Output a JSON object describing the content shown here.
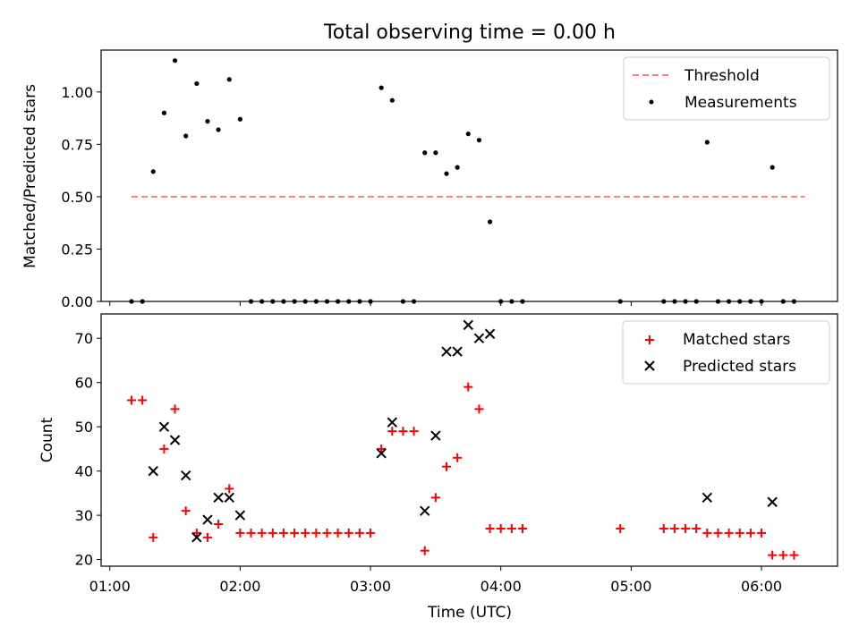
{
  "chart_data": [
    {
      "type": "scatter",
      "title": "Total observing time = 0.00 h",
      "xlabel": "",
      "ylabel": "Matched/Predicted stars",
      "xlim": [
        "00:56",
        "06:35"
      ],
      "ylim": [
        0,
        1.2
      ],
      "yticks": [
        "0.00",
        "0.25",
        "0.50",
        "0.75",
        "1.00"
      ],
      "legend": {
        "position": "upper right",
        "entries": [
          "Threshold",
          "Measurements"
        ]
      },
      "threshold": {
        "name": "Threshold",
        "value": 0.5,
        "x": [
          "01:10",
          "06:20"
        ],
        "color": "#ff7f7f"
      },
      "series": [
        {
          "name": "Measurements",
          "color": "#000000",
          "marker": "dot",
          "points": [
            [
              "01:10",
              0
            ],
            [
              "01:15",
              0
            ],
            [
              "01:20",
              0.62
            ],
            [
              "01:25",
              0.9
            ],
            [
              "01:30",
              1.15
            ],
            [
              "01:35",
              0.79
            ],
            [
              "01:40",
              1.04
            ],
            [
              "01:45",
              0.86
            ],
            [
              "01:50",
              0.82
            ],
            [
              "01:55",
              1.06
            ],
            [
              "02:00",
              0.87
            ],
            [
              "02:05",
              0
            ],
            [
              "02:10",
              0
            ],
            [
              "02:15",
              0
            ],
            [
              "02:20",
              0
            ],
            [
              "02:25",
              0
            ],
            [
              "02:30",
              0
            ],
            [
              "02:35",
              0
            ],
            [
              "02:40",
              0
            ],
            [
              "02:45",
              0
            ],
            [
              "02:50",
              0
            ],
            [
              "02:55",
              0
            ],
            [
              "03:00",
              0
            ],
            [
              "03:05",
              1.02
            ],
            [
              "03:10",
              0.96
            ],
            [
              "03:15",
              0
            ],
            [
              "03:20",
              0
            ],
            [
              "03:25",
              0.71
            ],
            [
              "03:30",
              0.71
            ],
            [
              "03:35",
              0.61
            ],
            [
              "03:40",
              0.64
            ],
            [
              "03:45",
              0.8
            ],
            [
              "03:50",
              0.77
            ],
            [
              "03:55",
              0.38
            ],
            [
              "04:00",
              0
            ],
            [
              "04:05",
              0
            ],
            [
              "04:10",
              0
            ],
            [
              "04:55",
              0
            ],
            [
              "05:15",
              0
            ],
            [
              "05:20",
              0
            ],
            [
              "05:25",
              0
            ],
            [
              "05:30",
              0
            ],
            [
              "05:35",
              0.76
            ],
            [
              "05:40",
              0
            ],
            [
              "05:45",
              0
            ],
            [
              "05:50",
              0
            ],
            [
              "05:55",
              0
            ],
            [
              "06:00",
              0
            ],
            [
              "06:05",
              0.64
            ],
            [
              "06:10",
              0
            ],
            [
              "06:15",
              0
            ]
          ]
        }
      ]
    },
    {
      "type": "scatter",
      "title": "",
      "xlabel": "Time (UTC)",
      "ylabel": "Count",
      "xlim": [
        "00:56",
        "06:35"
      ],
      "ylim": [
        18.5,
        75.5
      ],
      "xticks": [
        "01:00",
        "02:00",
        "03:00",
        "04:00",
        "05:00",
        "06:00"
      ],
      "yticks": [
        "20",
        "30",
        "40",
        "50",
        "60",
        "70"
      ],
      "legend": {
        "position": "upper right",
        "entries": [
          "Matched stars",
          "Predicted stars"
        ]
      },
      "series": [
        {
          "name": "Matched stars",
          "color": "#ff0000",
          "marker": "plus",
          "points": [
            [
              "01:10",
              56
            ],
            [
              "01:15",
              56
            ],
            [
              "01:20",
              25
            ],
            [
              "01:25",
              45
            ],
            [
              "01:30",
              54
            ],
            [
              "01:35",
              31
            ],
            [
              "01:40",
              26
            ],
            [
              "01:45",
              25
            ],
            [
              "01:50",
              28
            ],
            [
              "01:55",
              36
            ],
            [
              "02:00",
              26
            ],
            [
              "02:05",
              26
            ],
            [
              "02:10",
              26
            ],
            [
              "02:15",
              26
            ],
            [
              "02:20",
              26
            ],
            [
              "02:25",
              26
            ],
            [
              "02:30",
              26
            ],
            [
              "02:35",
              26
            ],
            [
              "02:40",
              26
            ],
            [
              "02:45",
              26
            ],
            [
              "02:50",
              26
            ],
            [
              "02:55",
              26
            ],
            [
              "03:00",
              26
            ],
            [
              "03:05",
              45
            ],
            [
              "03:10",
              49
            ],
            [
              "03:15",
              49
            ],
            [
              "03:20",
              49
            ],
            [
              "03:25",
              22
            ],
            [
              "03:30",
              34
            ],
            [
              "03:35",
              41
            ],
            [
              "03:40",
              43
            ],
            [
              "03:45",
              59
            ],
            [
              "03:50",
              54
            ],
            [
              "03:55",
              27
            ],
            [
              "04:00",
              27
            ],
            [
              "04:05",
              27
            ],
            [
              "04:10",
              27
            ],
            [
              "04:55",
              27
            ],
            [
              "05:15",
              27
            ],
            [
              "05:20",
              27
            ],
            [
              "05:25",
              27
            ],
            [
              "05:30",
              27
            ],
            [
              "05:35",
              26
            ],
            [
              "05:40",
              26
            ],
            [
              "05:45",
              26
            ],
            [
              "05:50",
              26
            ],
            [
              "05:55",
              26
            ],
            [
              "06:00",
              26
            ],
            [
              "06:05",
              21
            ],
            [
              "06:10",
              21
            ],
            [
              "06:15",
              21
            ]
          ]
        },
        {
          "name": "Predicted stars",
          "color": "#000000",
          "marker": "x",
          "points": [
            [
              "01:20",
              40
            ],
            [
              "01:25",
              50
            ],
            [
              "01:30",
              47
            ],
            [
              "01:35",
              39
            ],
            [
              "01:40",
              25
            ],
            [
              "01:45",
              29
            ],
            [
              "01:50",
              34
            ],
            [
              "01:55",
              34
            ],
            [
              "02:00",
              30
            ],
            [
              "03:05",
              44
            ],
            [
              "03:10",
              51
            ],
            [
              "03:25",
              31
            ],
            [
              "03:30",
              48
            ],
            [
              "03:35",
              67
            ],
            [
              "03:40",
              67
            ],
            [
              "03:45",
              73
            ],
            [
              "03:50",
              70
            ],
            [
              "03:55",
              71
            ],
            [
              "05:35",
              34
            ],
            [
              "06:05",
              33
            ]
          ]
        }
      ]
    }
  ]
}
